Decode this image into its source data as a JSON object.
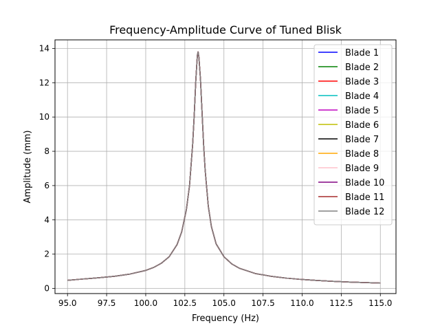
{
  "chart_data": {
    "type": "line",
    "title": "Frequency-Amplitude Curve of Tuned Blisk",
    "xlabel": "Frequency (Hz)",
    "ylabel": "Amplitude (mm)",
    "xlim": [
      94.2,
      116.0
    ],
    "ylim": [
      -0.3,
      14.5
    ],
    "xticks": [
      95.0,
      97.5,
      100.0,
      102.5,
      105.0,
      107.5,
      110.0,
      112.5,
      115.0
    ],
    "xtick_labels": [
      "95.0",
      "97.5",
      "100.0",
      "102.5",
      "105.0",
      "107.5",
      "110.0",
      "112.5",
      "115.0"
    ],
    "yticks": [
      0,
      2,
      4,
      6,
      8,
      10,
      12,
      14
    ],
    "ytick_labels": [
      "0",
      "2",
      "4",
      "6",
      "8",
      "10",
      "12",
      "14"
    ],
    "grid": true,
    "legend_position": "top-right",
    "x": [
      95.0,
      96.0,
      97.0,
      98.0,
      99.0,
      100.0,
      100.5,
      101.0,
      101.5,
      102.0,
      102.3,
      102.6,
      102.8,
      103.0,
      103.1,
      103.2,
      103.3,
      103.35,
      103.4,
      103.5,
      103.6,
      103.7,
      103.8,
      104.0,
      104.2,
      104.5,
      105.0,
      105.5,
      106.0,
      107.0,
      108.0,
      109.0,
      110.0,
      111.0,
      112.0,
      113.0,
      114.0,
      115.0
    ],
    "series": [
      {
        "name": "Blade 1",
        "color": "#0000ff",
        "values": [
          0.47,
          0.55,
          0.62,
          0.71,
          0.84,
          1.05,
          1.22,
          1.47,
          1.85,
          2.55,
          3.3,
          4.6,
          6.0,
          8.4,
          10.1,
          12.1,
          13.6,
          13.8,
          13.5,
          12.2,
          10.3,
          8.4,
          6.9,
          4.8,
          3.6,
          2.6,
          1.85,
          1.43,
          1.17,
          0.87,
          0.71,
          0.6,
          0.52,
          0.46,
          0.41,
          0.37,
          0.34,
          0.31
        ]
      },
      {
        "name": "Blade 2",
        "color": "#008000",
        "values": [
          0.47,
          0.55,
          0.62,
          0.71,
          0.84,
          1.05,
          1.22,
          1.47,
          1.85,
          2.55,
          3.3,
          4.6,
          6.0,
          8.4,
          10.1,
          12.1,
          13.6,
          13.8,
          13.5,
          12.2,
          10.3,
          8.4,
          6.9,
          4.8,
          3.6,
          2.6,
          1.85,
          1.43,
          1.17,
          0.87,
          0.71,
          0.6,
          0.52,
          0.46,
          0.41,
          0.37,
          0.34,
          0.31
        ]
      },
      {
        "name": "Blade 3",
        "color": "#ff0000",
        "values": [
          0.47,
          0.55,
          0.62,
          0.71,
          0.84,
          1.05,
          1.22,
          1.47,
          1.85,
          2.55,
          3.3,
          4.6,
          6.0,
          8.4,
          10.1,
          12.1,
          13.6,
          13.8,
          13.5,
          12.2,
          10.3,
          8.4,
          6.9,
          4.8,
          3.6,
          2.6,
          1.85,
          1.43,
          1.17,
          0.87,
          0.71,
          0.6,
          0.52,
          0.46,
          0.41,
          0.37,
          0.34,
          0.31
        ]
      },
      {
        "name": "Blade 4",
        "color": "#00bfbf",
        "values": [
          0.47,
          0.55,
          0.62,
          0.71,
          0.84,
          1.05,
          1.22,
          1.47,
          1.85,
          2.55,
          3.3,
          4.6,
          6.0,
          8.4,
          10.1,
          12.1,
          13.6,
          13.8,
          13.5,
          12.2,
          10.3,
          8.4,
          6.9,
          4.8,
          3.6,
          2.6,
          1.85,
          1.43,
          1.17,
          0.87,
          0.71,
          0.6,
          0.52,
          0.46,
          0.41,
          0.37,
          0.34,
          0.31
        ]
      },
      {
        "name": "Blade 5",
        "color": "#bf00bf",
        "values": [
          0.47,
          0.55,
          0.62,
          0.71,
          0.84,
          1.05,
          1.22,
          1.47,
          1.85,
          2.55,
          3.3,
          4.6,
          6.0,
          8.4,
          10.1,
          12.1,
          13.6,
          13.8,
          13.5,
          12.2,
          10.3,
          8.4,
          6.9,
          4.8,
          3.6,
          2.6,
          1.85,
          1.43,
          1.17,
          0.87,
          0.71,
          0.6,
          0.52,
          0.46,
          0.41,
          0.37,
          0.34,
          0.31
        ]
      },
      {
        "name": "Blade 6",
        "color": "#bfbf00",
        "values": [
          0.47,
          0.55,
          0.62,
          0.71,
          0.84,
          1.05,
          1.22,
          1.47,
          1.85,
          2.55,
          3.3,
          4.6,
          6.0,
          8.4,
          10.1,
          12.1,
          13.6,
          13.8,
          13.5,
          12.2,
          10.3,
          8.4,
          6.9,
          4.8,
          3.6,
          2.6,
          1.85,
          1.43,
          1.17,
          0.87,
          0.71,
          0.6,
          0.52,
          0.46,
          0.41,
          0.37,
          0.34,
          0.31
        ]
      },
      {
        "name": "Blade 7",
        "color": "#000000",
        "values": [
          0.47,
          0.55,
          0.62,
          0.71,
          0.84,
          1.05,
          1.22,
          1.47,
          1.85,
          2.55,
          3.3,
          4.6,
          6.0,
          8.4,
          10.1,
          12.1,
          13.6,
          13.8,
          13.5,
          12.2,
          10.3,
          8.4,
          6.9,
          4.8,
          3.6,
          2.6,
          1.85,
          1.43,
          1.17,
          0.87,
          0.71,
          0.6,
          0.52,
          0.46,
          0.41,
          0.37,
          0.34,
          0.31
        ]
      },
      {
        "name": "Blade 8",
        "color": "#ffa500",
        "values": [
          0.47,
          0.55,
          0.62,
          0.71,
          0.84,
          1.05,
          1.22,
          1.47,
          1.85,
          2.55,
          3.3,
          4.6,
          6.0,
          8.4,
          10.1,
          12.1,
          13.6,
          13.8,
          13.5,
          12.2,
          10.3,
          8.4,
          6.9,
          4.8,
          3.6,
          2.6,
          1.85,
          1.43,
          1.17,
          0.87,
          0.71,
          0.6,
          0.52,
          0.46,
          0.41,
          0.37,
          0.34,
          0.31
        ]
      },
      {
        "name": "Blade 9",
        "color": "#ffc0cb",
        "values": [
          0.47,
          0.55,
          0.62,
          0.71,
          0.84,
          1.05,
          1.22,
          1.47,
          1.85,
          2.55,
          3.3,
          4.6,
          6.0,
          8.4,
          10.1,
          12.1,
          13.6,
          13.8,
          13.5,
          12.2,
          10.3,
          8.4,
          6.9,
          4.8,
          3.6,
          2.6,
          1.85,
          1.43,
          1.17,
          0.87,
          0.71,
          0.6,
          0.52,
          0.46,
          0.41,
          0.37,
          0.34,
          0.31
        ]
      },
      {
        "name": "Blade 10",
        "color": "#800080",
        "values": [
          0.47,
          0.55,
          0.62,
          0.71,
          0.84,
          1.05,
          1.22,
          1.47,
          1.85,
          2.55,
          3.3,
          4.6,
          6.0,
          8.4,
          10.1,
          12.1,
          13.6,
          13.8,
          13.5,
          12.2,
          10.3,
          8.4,
          6.9,
          4.8,
          3.6,
          2.6,
          1.85,
          1.43,
          1.17,
          0.87,
          0.71,
          0.6,
          0.52,
          0.46,
          0.41,
          0.37,
          0.34,
          0.31
        ]
      },
      {
        "name": "Blade 11",
        "color": "#a52a2a",
        "values": [
          0.47,
          0.55,
          0.62,
          0.71,
          0.84,
          1.05,
          1.22,
          1.47,
          1.85,
          2.55,
          3.3,
          4.6,
          6.0,
          8.4,
          10.1,
          12.1,
          13.6,
          13.8,
          13.5,
          12.2,
          10.3,
          8.4,
          6.9,
          4.8,
          3.6,
          2.6,
          1.85,
          1.43,
          1.17,
          0.87,
          0.71,
          0.6,
          0.52,
          0.46,
          0.41,
          0.37,
          0.34,
          0.31
        ]
      },
      {
        "name": "Blade 12",
        "color": "#808080",
        "values": [
          0.47,
          0.55,
          0.62,
          0.71,
          0.84,
          1.05,
          1.22,
          1.47,
          1.85,
          2.55,
          3.3,
          4.6,
          6.0,
          8.4,
          10.1,
          12.1,
          13.6,
          13.8,
          13.5,
          12.2,
          10.3,
          8.4,
          6.9,
          4.8,
          3.6,
          2.6,
          1.85,
          1.43,
          1.17,
          0.87,
          0.71,
          0.6,
          0.52,
          0.46,
          0.41,
          0.37,
          0.34,
          0.31
        ]
      }
    ]
  }
}
